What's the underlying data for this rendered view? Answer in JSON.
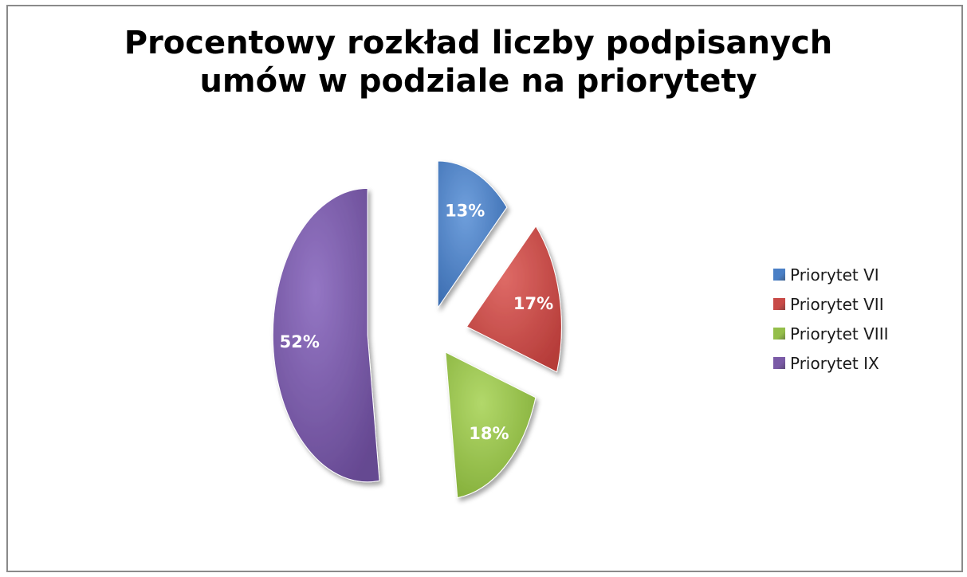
{
  "chart_data": {
    "type": "pie",
    "title": "Procentowy rozkład liczby podpisanych umów w podziale na priorytety",
    "categories": [
      "Priorytet VI",
      "Priorytet VII",
      "Priorytet VIII",
      "Priorytet IX"
    ],
    "values": [
      13,
      17,
      18,
      52
    ],
    "data_labels": [
      "13%",
      "17%",
      "18%",
      "52%"
    ],
    "colors": [
      "#4a7fc5",
      "#c84a47",
      "#94be4a",
      "#7a5aa6"
    ],
    "exploded": true,
    "legend_position": "right"
  }
}
